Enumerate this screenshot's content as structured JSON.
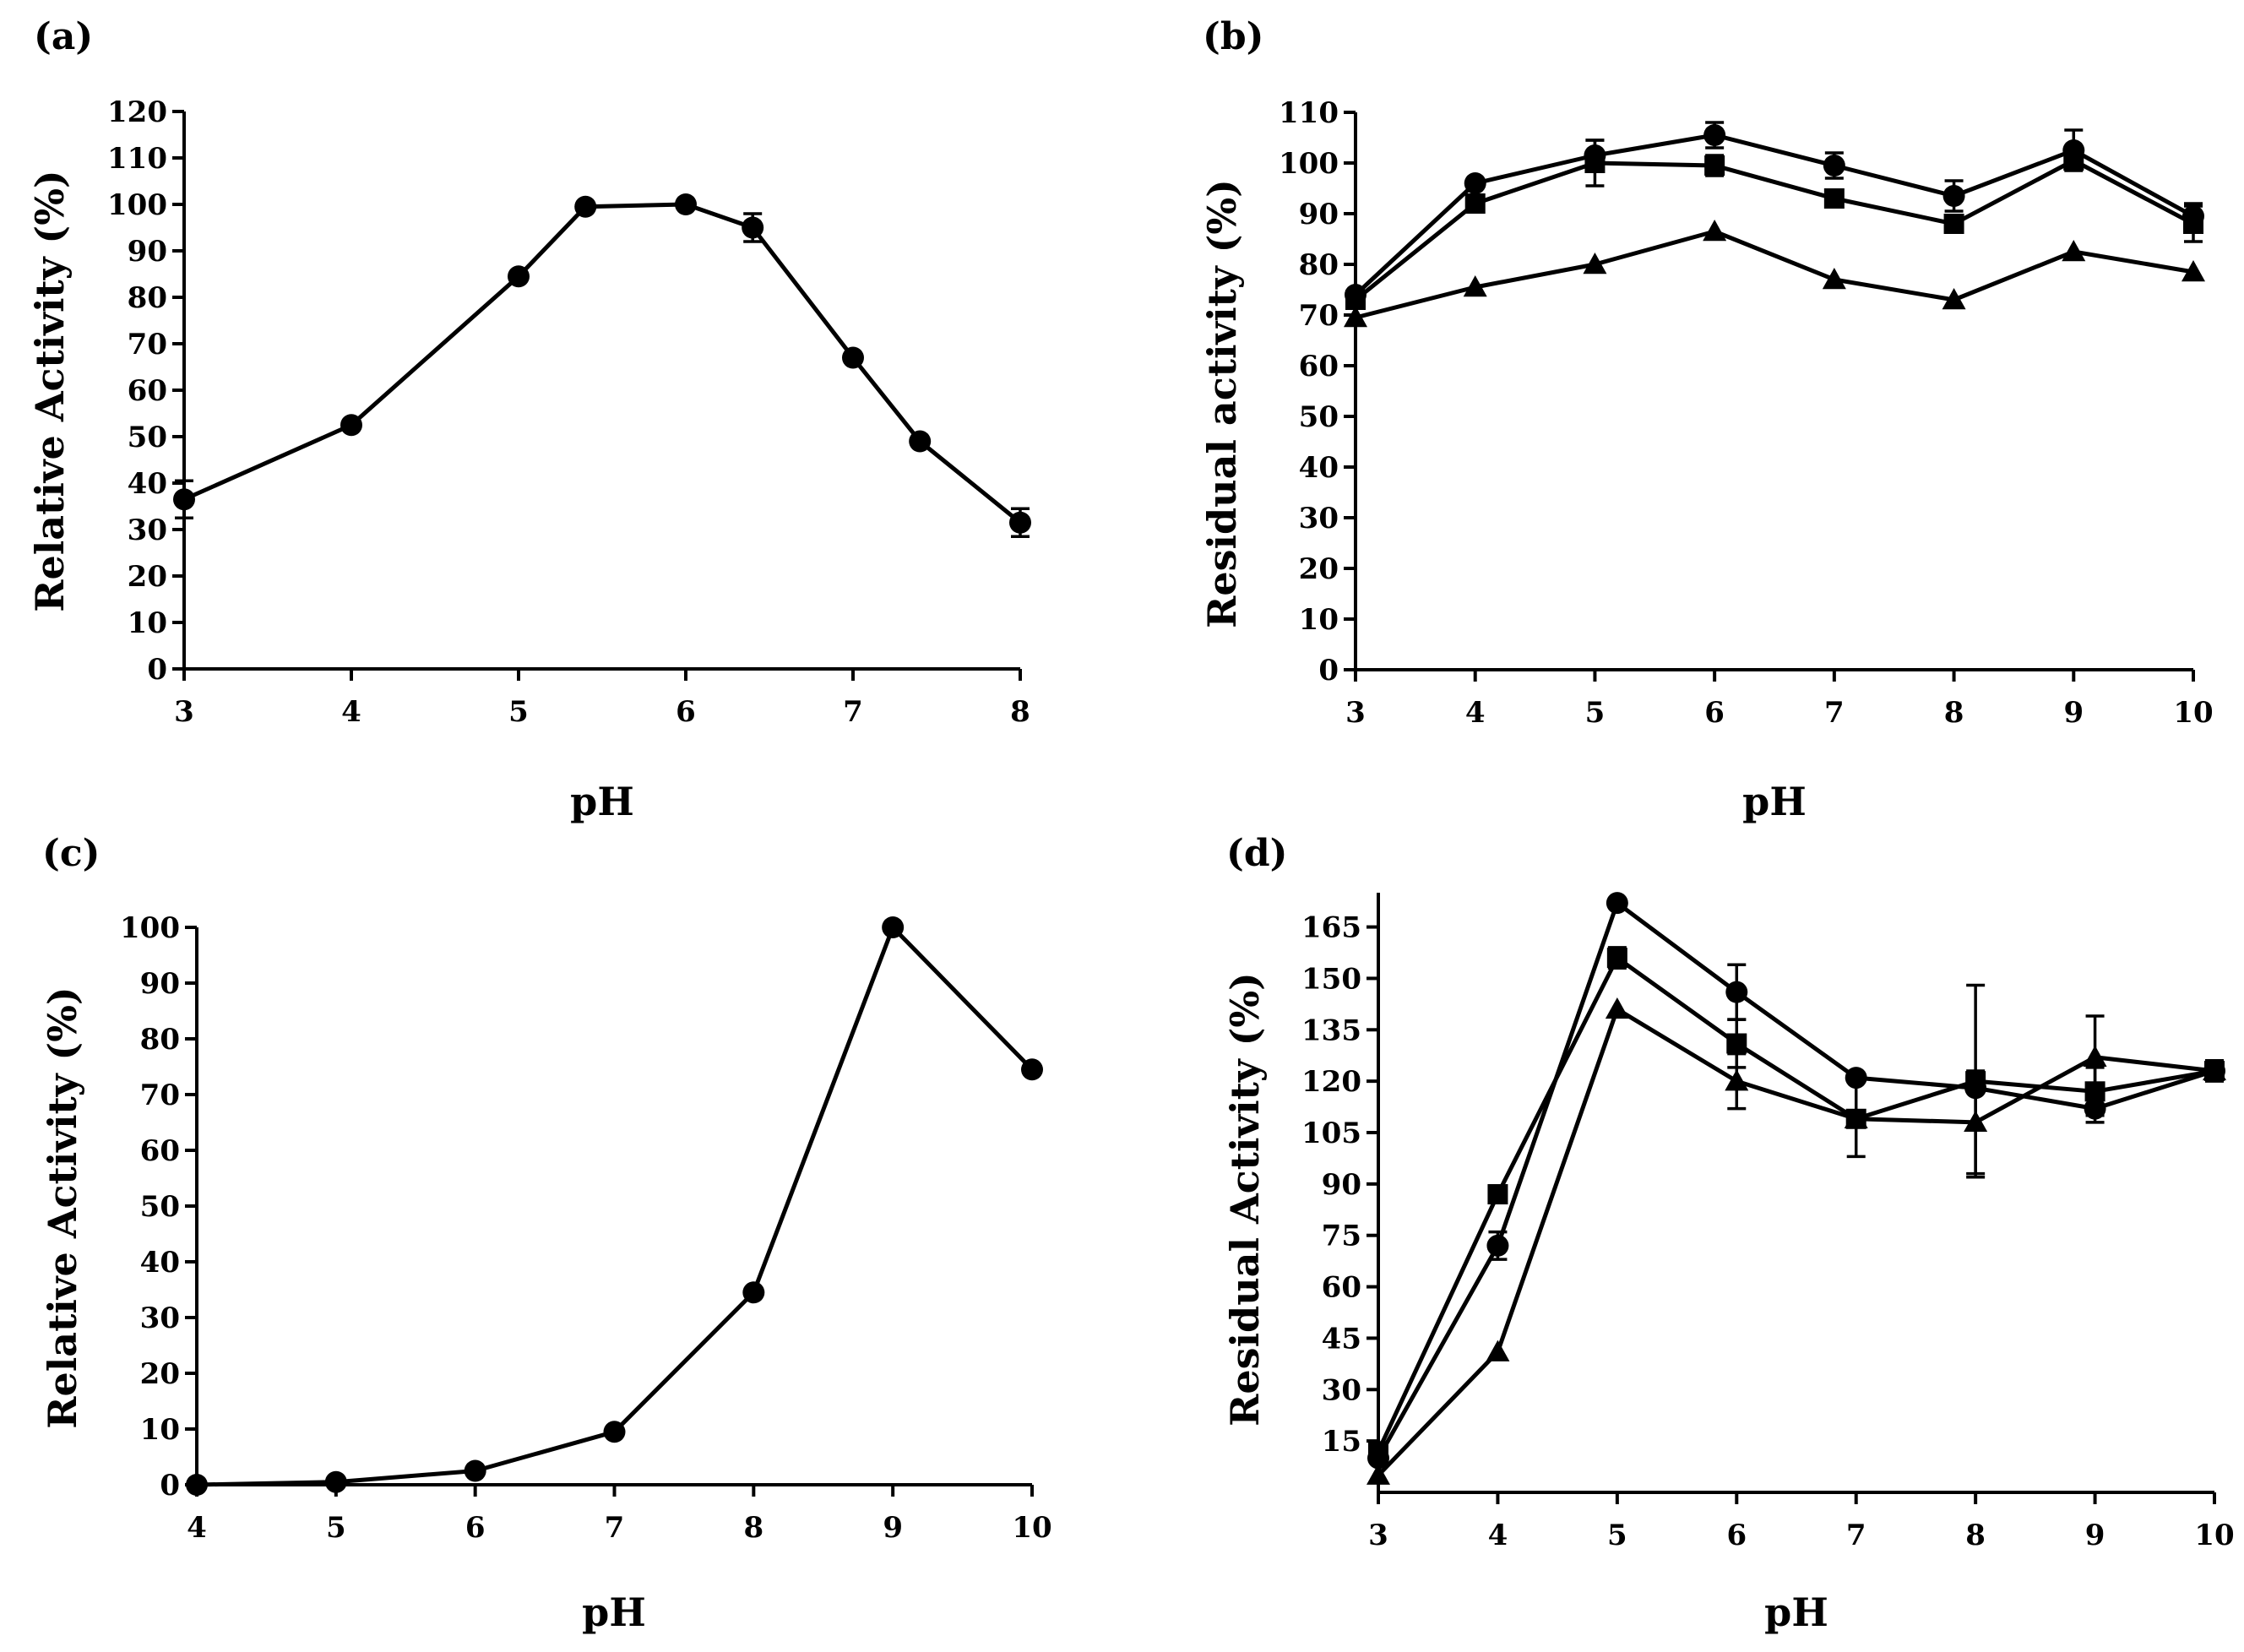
{
  "chart_data": [
    {
      "id": "a",
      "panel_label": "(a)",
      "type": "line",
      "xlabel": "pH",
      "ylabel": "Relative Activity (%)",
      "xlim": [
        3,
        8
      ],
      "ylim": [
        0,
        120
      ],
      "xticks": [
        3,
        4,
        5,
        6,
        7,
        8
      ],
      "yticks": [
        0,
        10,
        20,
        30,
        40,
        50,
        60,
        70,
        80,
        90,
        100,
        110,
        120
      ],
      "series": [
        {
          "name": "activity",
          "marker": "circle",
          "x": [
            3,
            4,
            5,
            5.4,
            6,
            6.4,
            7,
            7.4,
            8
          ],
          "y": [
            36.5,
            52.5,
            84.5,
            99.5,
            100,
            95,
            67,
            49,
            31.5
          ],
          "err": [
            4,
            0,
            0,
            0,
            0,
            3,
            0,
            0,
            3
          ]
        }
      ]
    },
    {
      "id": "b",
      "panel_label": "(b)",
      "type": "line",
      "xlabel": "pH",
      "ylabel": "Residual activity (%)",
      "xlim": [
        3,
        10
      ],
      "ylim": [
        0,
        110
      ],
      "xticks": [
        3,
        4,
        5,
        6,
        7,
        8,
        9,
        10
      ],
      "yticks": [
        0,
        10,
        20,
        30,
        40,
        50,
        60,
        70,
        80,
        90,
        100,
        110
      ],
      "series": [
        {
          "name": "circle series",
          "marker": "circle",
          "x": [
            3,
            4,
            5,
            6,
            7,
            8,
            9,
            10
          ],
          "y": [
            74,
            96,
            101.5,
            105.5,
            99.5,
            93.5,
            102.5,
            89.5
          ],
          "err": [
            0,
            0,
            3,
            2.5,
            2.5,
            3,
            4,
            2.5
          ]
        },
        {
          "name": "square series",
          "marker": "square",
          "x": [
            3,
            4,
            5,
            6,
            7,
            8,
            9,
            10
          ],
          "y": [
            73,
            92,
            100,
            99.5,
            93,
            88,
            100.5,
            88
          ],
          "err": [
            0,
            0,
            4.5,
            2,
            0,
            0,
            0,
            3.5
          ]
        },
        {
          "name": "triangle series",
          "marker": "triangle",
          "x": [
            3,
            4,
            5,
            6,
            7,
            8,
            9,
            10
          ],
          "y": [
            69.5,
            75.5,
            80,
            86.5,
            77,
            73,
            82.5,
            78.5
          ],
          "err": [
            0,
            0,
            0,
            0,
            0,
            0,
            0,
            0
          ]
        }
      ]
    },
    {
      "id": "c",
      "panel_label": "(c)",
      "type": "line",
      "xlabel": "pH",
      "ylabel": "Relative Activity (%)",
      "xlim": [
        4,
        10
      ],
      "ylim": [
        0,
        100
      ],
      "xticks": [
        4,
        5,
        6,
        7,
        8,
        9,
        10
      ],
      "yticks": [
        0,
        10,
        20,
        30,
        40,
        50,
        60,
        70,
        80,
        90,
        100
      ],
      "series": [
        {
          "name": "activity",
          "marker": "circle",
          "x": [
            4,
            5,
            6,
            7,
            8,
            9,
            10
          ],
          "y": [
            0,
            0.5,
            2.5,
            9.5,
            34.5,
            100,
            74.5
          ],
          "err": [
            0,
            0,
            0,
            0,
            0,
            0,
            0
          ]
        }
      ]
    },
    {
      "id": "d",
      "panel_label": "(d)",
      "type": "line",
      "xlabel": "pH",
      "ylabel": "Residual Activity (%)",
      "xlim": [
        3,
        10
      ],
      "ylim": [
        0,
        175
      ],
      "xticks": [
        3,
        4,
        5,
        6,
        7,
        8,
        9,
        10
      ],
      "yticks": [
        15,
        30,
        45,
        60,
        75,
        90,
        105,
        120,
        135,
        150,
        165
      ],
      "series": [
        {
          "name": "circle series",
          "marker": "circle",
          "x": [
            3,
            4,
            5,
            6,
            7,
            8,
            9,
            10
          ],
          "y": [
            10,
            72,
            172,
            146,
            121,
            118,
            112,
            123
          ],
          "err": [
            0,
            4,
            0,
            8,
            0,
            0,
            4,
            0
          ]
        },
        {
          "name": "square series",
          "marker": "square",
          "x": [
            3,
            4,
            5,
            6,
            7,
            8,
            9,
            10
          ],
          "y": [
            12,
            87,
            156,
            131,
            109,
            120,
            117,
            123
          ],
          "err": [
            0,
            0,
            3,
            7,
            11,
            28,
            7,
            3
          ]
        },
        {
          "name": "triangle series",
          "marker": "triangle",
          "x": [
            3,
            4,
            5,
            6,
            7,
            8,
            9,
            10
          ],
          "y": [
            5,
            41,
            141,
            120,
            109,
            108,
            127,
            123
          ],
          "err": [
            0,
            0,
            0,
            8,
            0,
            15,
            12,
            0
          ]
        }
      ]
    }
  ]
}
